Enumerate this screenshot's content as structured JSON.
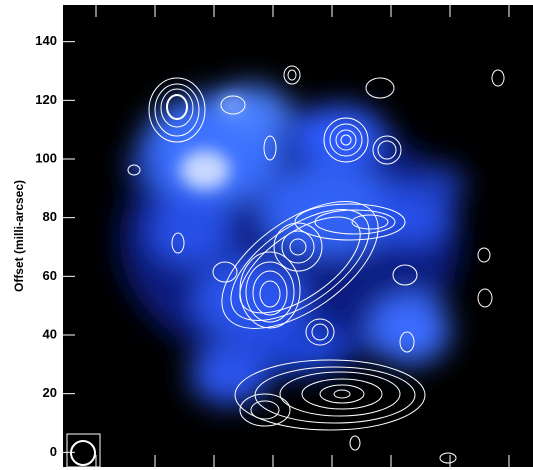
{
  "chart_data": {
    "type": "image",
    "ylabel": "Offset (milli-arcsec)",
    "ylim": [
      -5,
      152.5
    ],
    "yticks": [
      0,
      20,
      40,
      60,
      80,
      100,
      120,
      140
    ]
  }
}
